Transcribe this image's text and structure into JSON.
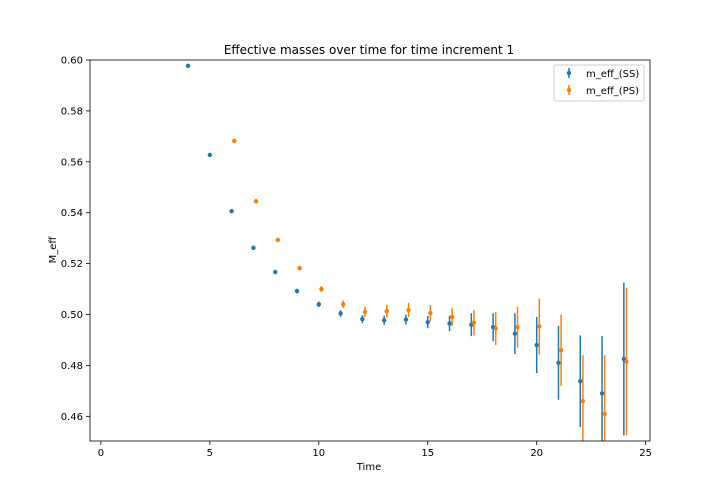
{
  "chart_data": {
    "type": "scatter",
    "title": "Effective masses over time for time increment 1",
    "xlabel": "Time",
    "ylabel": "M_eff",
    "xlim": [
      -0.5,
      25.2
    ],
    "ylim": [
      0.4503,
      0.6
    ],
    "xticks": [
      "0",
      "5",
      "10",
      "15",
      "20",
      "25"
    ],
    "xtick_values": [
      0,
      5,
      10,
      15,
      20,
      25
    ],
    "yticks": [
      "0.46",
      "0.48",
      "0.50",
      "0.52",
      "0.54",
      "0.56",
      "0.58",
      "0.60"
    ],
    "ytick_values": [
      0.46,
      0.48,
      0.5,
      0.52,
      0.54,
      0.56,
      0.58,
      0.6
    ],
    "grid": false,
    "legend_position": "top-right",
    "series": [
      {
        "name": "m_eff_(SS)",
        "color": "#1f77b4",
        "offset": 0,
        "points": [
          {
            "x": 4,
            "y": 0.5977,
            "err": 0.0005
          },
          {
            "x": 5,
            "y": 0.5627,
            "err": 0.0005
          },
          {
            "x": 6,
            "y": 0.5406,
            "err": 0.0006
          },
          {
            "x": 7,
            "y": 0.5262,
            "err": 0.0008
          },
          {
            "x": 8,
            "y": 0.5167,
            "err": 0.0008
          },
          {
            "x": 9,
            "y": 0.5092,
            "err": 0.0009
          },
          {
            "x": 10,
            "y": 0.504,
            "err": 0.0011
          },
          {
            "x": 11,
            "y": 0.5004,
            "err": 0.0013
          },
          {
            "x": 12,
            "y": 0.4982,
            "err": 0.0016
          },
          {
            "x": 13,
            "y": 0.4977,
            "err": 0.0018
          },
          {
            "x": 14,
            "y": 0.498,
            "err": 0.002
          },
          {
            "x": 15,
            "y": 0.497,
            "err": 0.0024
          },
          {
            "x": 16,
            "y": 0.4965,
            "err": 0.003
          },
          {
            "x": 17,
            "y": 0.496,
            "err": 0.0045
          },
          {
            "x": 18,
            "y": 0.495,
            "err": 0.0055
          },
          {
            "x": 19,
            "y": 0.4925,
            "err": 0.008
          },
          {
            "x": 20,
            "y": 0.488,
            "err": 0.011
          },
          {
            "x": 21,
            "y": 0.481,
            "err": 0.0145
          },
          {
            "x": 22,
            "y": 0.4738,
            "err": 0.018
          },
          {
            "x": 23,
            "y": 0.469,
            "err": 0.0225
          },
          {
            "x": 24,
            "y": 0.4825,
            "err": 0.03
          }
        ]
      },
      {
        "name": "m_eff_(PS)",
        "color": "#ff7f0e",
        "offset": 0.12,
        "points": [
          {
            "x": 6,
            "y": 0.5682,
            "err": 0.0006
          },
          {
            "x": 7,
            "y": 0.5445,
            "err": 0.0007
          },
          {
            "x": 8,
            "y": 0.5293,
            "err": 0.0008
          },
          {
            "x": 9,
            "y": 0.5182,
            "err": 0.0009
          },
          {
            "x": 10,
            "y": 0.51,
            "err": 0.0012
          },
          {
            "x": 11,
            "y": 0.504,
            "err": 0.0015
          },
          {
            "x": 12,
            "y": 0.501,
            "err": 0.002
          },
          {
            "x": 13,
            "y": 0.5013,
            "err": 0.0025
          },
          {
            "x": 14,
            "y": 0.5018,
            "err": 0.0028
          },
          {
            "x": 15,
            "y": 0.5005,
            "err": 0.0032
          },
          {
            "x": 16,
            "y": 0.499,
            "err": 0.0035
          },
          {
            "x": 17,
            "y": 0.4968,
            "err": 0.005
          },
          {
            "x": 18,
            "y": 0.4945,
            "err": 0.0065
          },
          {
            "x": 19,
            "y": 0.495,
            "err": 0.008
          },
          {
            "x": 20,
            "y": 0.4953,
            "err": 0.011
          },
          {
            "x": 21,
            "y": 0.486,
            "err": 0.014
          },
          {
            "x": 22,
            "y": 0.466,
            "err": 0.018
          },
          {
            "x": 23,
            "y": 0.461,
            "err": 0.023
          },
          {
            "x": 24,
            "y": 0.4815,
            "err": 0.029
          }
        ]
      }
    ]
  }
}
